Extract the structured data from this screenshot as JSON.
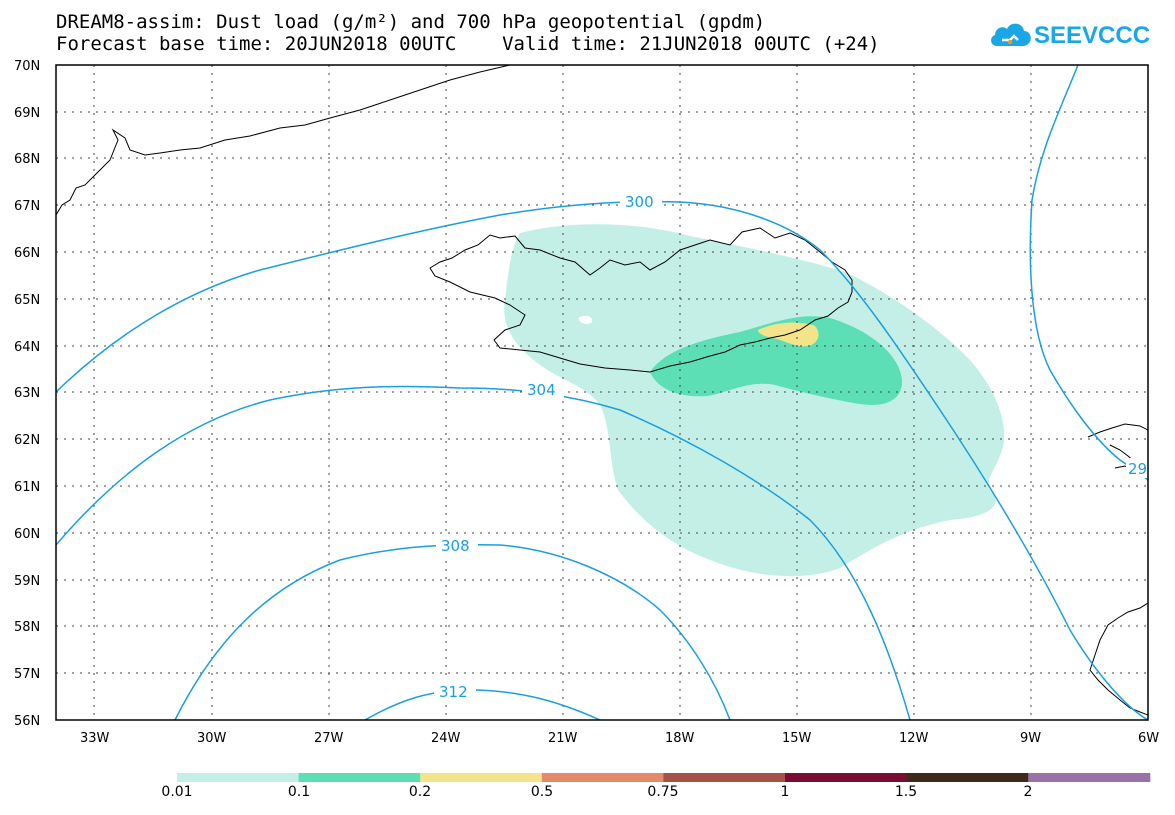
{
  "title_line1": "DREAM8-assim: Dust load (g/m²) and 700 hPa geopotential (gpdm)",
  "title_line2": "Forecast base time: 20JUN2018 00UTC    Valid time: 21JUN2018 00UTC (+24)",
  "logo_text": "SEEVCCC",
  "logo_icon": "cloud-icon",
  "lat_labels": [
    "70N",
    "69N",
    "68N",
    "67N",
    "66N",
    "65N",
    "64N",
    "63N",
    "62N",
    "61N",
    "60N",
    "59N",
    "58N",
    "57N",
    "56N"
  ],
  "lon_labels": [
    "33W",
    "30W",
    "27W",
    "24W",
    "21W",
    "18W",
    "15W",
    "12W",
    "9W",
    "6W"
  ],
  "contour_labels": [
    "300",
    "304",
    "308",
    "312",
    "29"
  ],
  "colorbar": {
    "colors": [
      "#c4efe7",
      "#5ddfb5",
      "#f3e48a",
      "#e48a6a",
      "#a5524b",
      "#7a0d33",
      "#3d2a1a",
      "#9a72a6"
    ],
    "labels": [
      "0.01",
      "0.1",
      "0.2",
      "0.5",
      "0.75",
      "1",
      "1.5",
      "2"
    ]
  },
  "colors": {
    "contour": "#1a9ee0",
    "coast": "#000000",
    "grid": "#444444"
  }
}
